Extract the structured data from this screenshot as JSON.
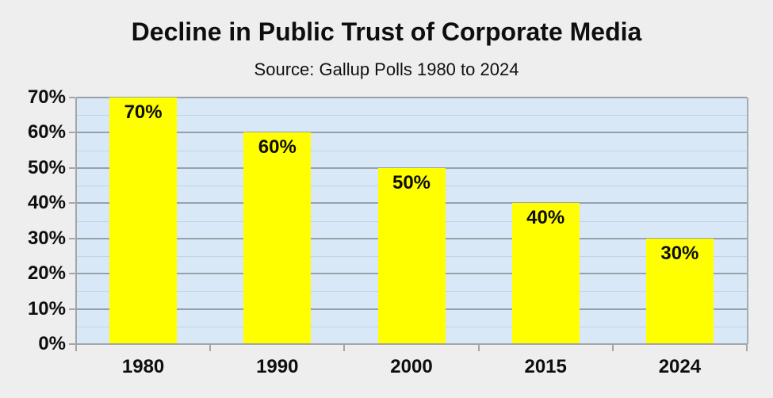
{
  "header": {
    "title": "Decline in Public Trust of Corporate Media",
    "subtitle": "Source: Gallup Polls 1980 to 2024"
  },
  "chart_data": {
    "type": "bar",
    "title": "Decline in Public Trust of Corporate Media",
    "subtitle": "Source: Gallup Polls 1980 to 2024",
    "categories": [
      "1980",
      "1990",
      "2000",
      "2015",
      "2024"
    ],
    "values": [
      70,
      60,
      50,
      40,
      30
    ],
    "data_labels": [
      "70%",
      "60%",
      "50%",
      "40%",
      "30%"
    ],
    "y_tick_labels": [
      "0%",
      "10%",
      "20%",
      "30%",
      "40%",
      "50%",
      "60%",
      "70%"
    ],
    "xlabel": "",
    "ylabel": "",
    "ylim": [
      0,
      70
    ],
    "y_major_step": 10,
    "y_minor_step": 5,
    "grid": "horizontal major and minor, on",
    "legend": "none",
    "data_labels_position": "inside-top of bars",
    "colors": {
      "bar": "#ffff00",
      "plot_background": "#d9e8f6",
      "canvas_background": "#eeeeee",
      "major_gridline": "#98a1a9",
      "minor_gridline": "#c2d3e3",
      "axis_line": "#a6a6a6",
      "text": "#0e0e0e"
    }
  }
}
